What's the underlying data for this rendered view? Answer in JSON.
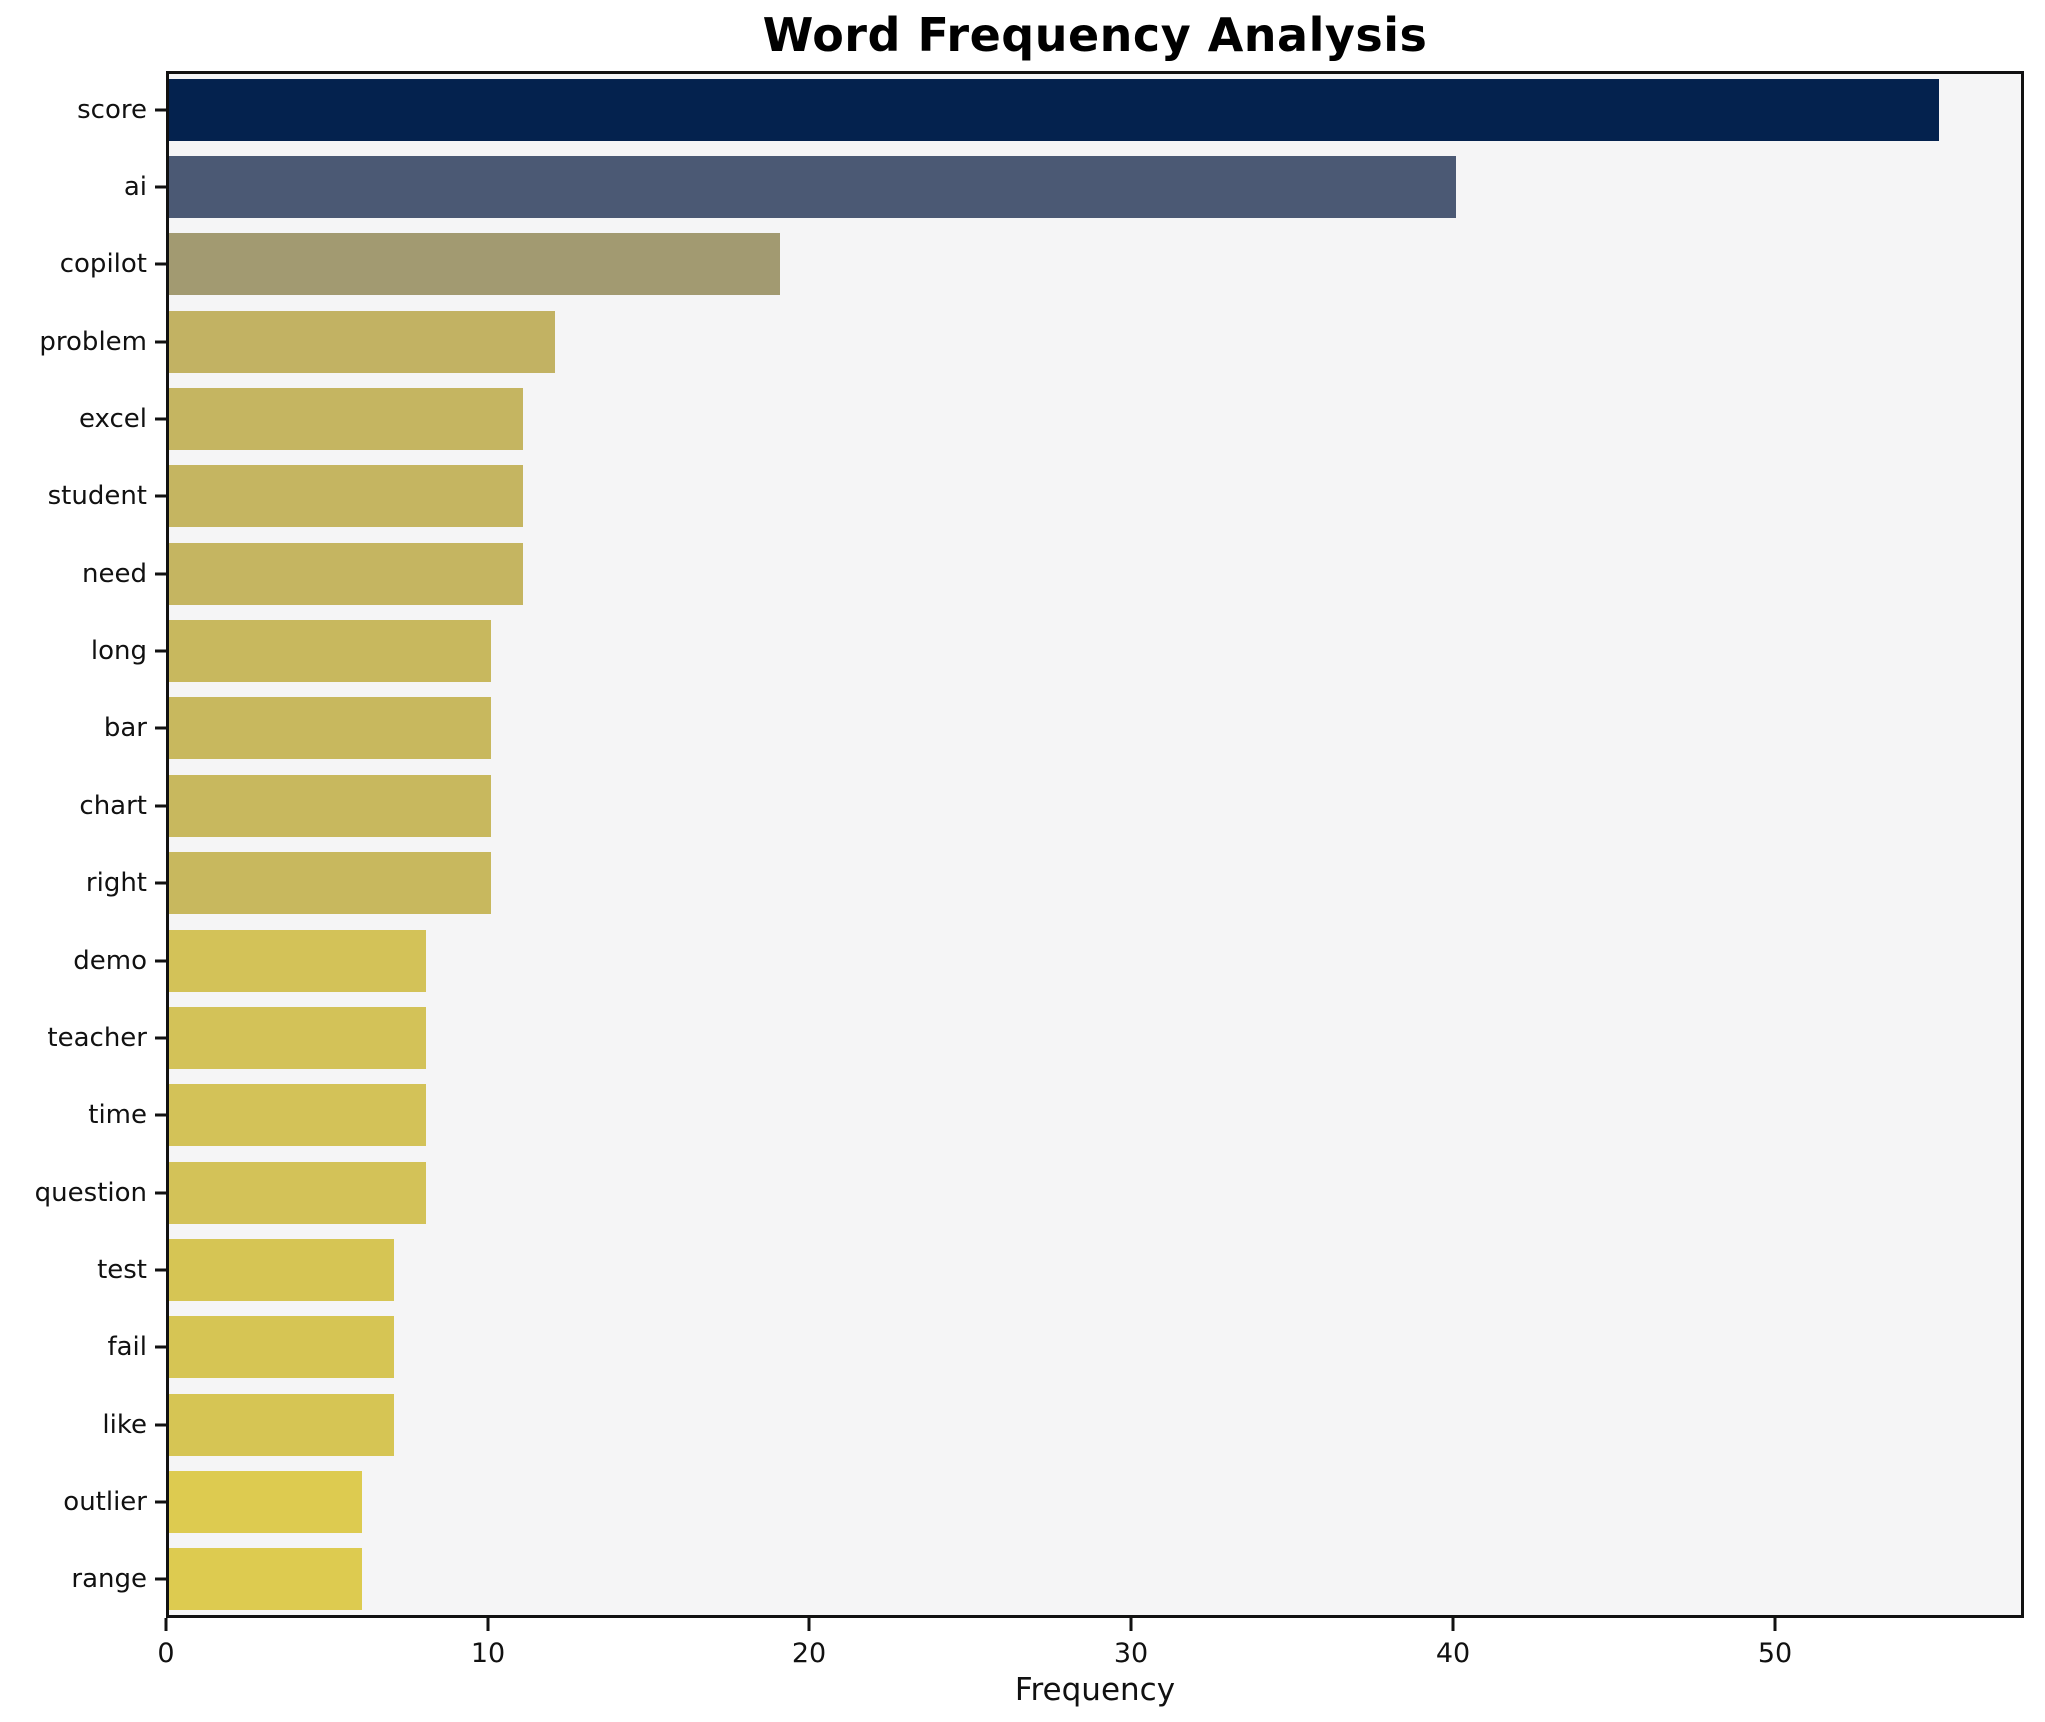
{
  "chart_data": {
    "type": "bar",
    "orientation": "horizontal",
    "title": "Word Frequency Analysis",
    "xlabel": "Frequency",
    "ylabel": "",
    "categories": [
      "score",
      "ai",
      "copilot",
      "problem",
      "excel",
      "student",
      "need",
      "long",
      "bar",
      "chart",
      "right",
      "demo",
      "teacher",
      "time",
      "question",
      "test",
      "fail",
      "like",
      "outlier",
      "range"
    ],
    "values": [
      55,
      40,
      19,
      12,
      11,
      11,
      11,
      10,
      10,
      10,
      10,
      8,
      8,
      8,
      8,
      7,
      7,
      7,
      6,
      6
    ],
    "bar_colors": [
      "#04224e",
      "#4b5974",
      "#a29a71",
      "#c2b263",
      "#c5b561",
      "#c5b561",
      "#c5b561",
      "#c8b85e",
      "#c8b85e",
      "#c8b85e",
      "#c8b85e",
      "#d3c258",
      "#d3c258",
      "#d3c258",
      "#d3c258",
      "#d6c554",
      "#d6c554",
      "#d6c554",
      "#ddcb50",
      "#ddcb50"
    ],
    "xlim": [
      0,
      57.75
    ],
    "xticks": [
      0,
      10,
      20,
      30,
      40,
      50
    ],
    "legend": "none",
    "grid": false,
    "plot_background": "#f5f5f6",
    "figure_background": "#ffffff",
    "spine_color": "#111111"
  }
}
